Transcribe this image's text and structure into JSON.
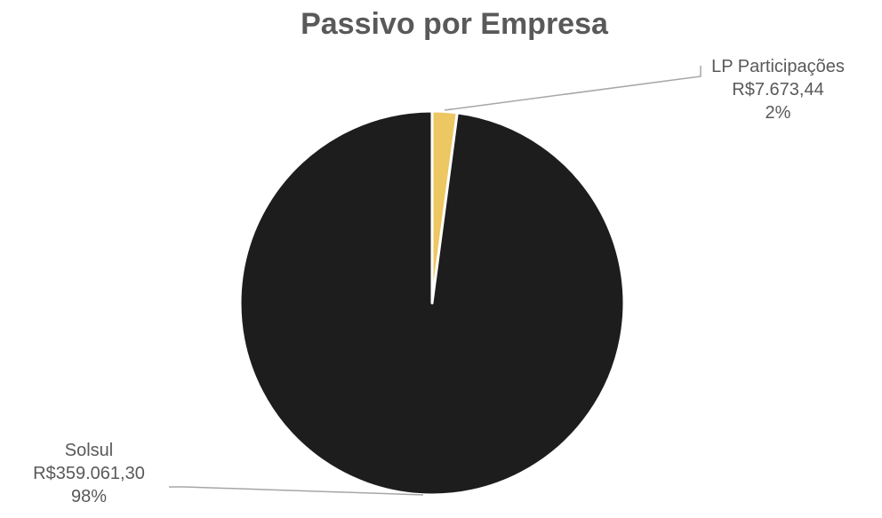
{
  "chart_data": {
    "type": "pie",
    "title": "Passivo por Empresa",
    "slices": [
      {
        "name": "LP Participações",
        "value": 7673.44,
        "value_label": "R$7.673,44",
        "percent_label": "2%",
        "color": "#ecc762"
      },
      {
        "name": "Solsul",
        "value": 359061.3,
        "value_label": "R$359.061,30",
        "percent_label": "98%",
        "color": "#1d1d1d"
      }
    ],
    "start_angle_deg": 0,
    "direction": "clockwise",
    "legend": "none",
    "data_labels": "outside-with-leader-lines"
  }
}
